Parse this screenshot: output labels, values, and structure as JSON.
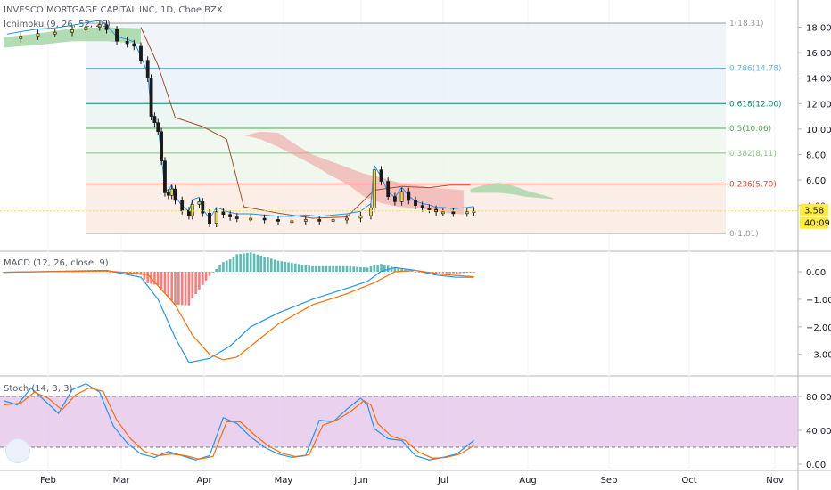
{
  "header": {
    "symbol_line": "INVESCO MORTGAGE CAPITAL INC, 1D, Cboe BZX",
    "ichimoku_label": "Ichimoku (9, 26, 52, 26)"
  },
  "price_scale": {
    "ticks": [
      "18.00",
      "16.00",
      "14.00",
      "12.00",
      "10.00",
      "8.00",
      "6.00",
      "4.00"
    ],
    "last_price_tag": "3.58",
    "countdown_tag": "40:09"
  },
  "macd_pane": {
    "title": "MACD (12, 26, close, 9)",
    "ticks": [
      "0.00",
      "−1.00",
      "−2.00",
      "−3.00"
    ]
  },
  "stoch_pane": {
    "title": "Stoch (14, 3, 3)",
    "ticks": [
      "80.00",
      "40.00",
      "0.00"
    ]
  },
  "time_axis": {
    "months": [
      "Feb",
      "Mar",
      "Apr",
      "May",
      "Jun",
      "Jul",
      "Aug",
      "Sep",
      "Oct",
      "Nov"
    ]
  },
  "colors": {
    "up_candle": "#e8d84a",
    "down_candle": "#1a1a1a",
    "cloud_bear": "#ef9a9a",
    "cloud_bull": "#a5d6a7",
    "macd_line": "#2196f3",
    "signal_line": "#ff6d00",
    "hist_pos": "#26a69a",
    "hist_neg": "#ef5350",
    "stoch_band": "#e1bee7"
  },
  "chart_data": [
    {
      "type": "candlestick",
      "title": "INVESCO MORTGAGE CAPITAL INC, 1D, Cboe BZX",
      "ylim": [
        1.0,
        19.0
      ],
      "x_months": [
        "Feb",
        "Mar",
        "Apr",
        "May",
        "Jun",
        "Jul",
        "Aug",
        "Sep",
        "Oct",
        "Nov"
      ],
      "fibonacci": [
        {
          "level": "1",
          "value": 18.31,
          "label": "1(18.31)"
        },
        {
          "level": "0.786",
          "value": 14.78,
          "label": "0.786(14.78)"
        },
        {
          "level": "0.618",
          "value": 12.0,
          "label": "0.618(12.00)"
        },
        {
          "level": "0.5",
          "value": 10.06,
          "label": "0.5(10.06)"
        },
        {
          "level": "0.382",
          "value": 8.11,
          "label": "0.382(8.11)"
        },
        {
          "level": "0.236",
          "value": 5.7,
          "label": "0.236(5.70)"
        },
        {
          "level": "0",
          "value": 1.81,
          "label": "0(1.81)"
        }
      ],
      "close_approx": [
        [
          1,
          17.1
        ],
        [
          5,
          17.3
        ],
        [
          10,
          17.5
        ],
        [
          15,
          17.6
        ],
        [
          20,
          17.8
        ],
        [
          24,
          18.0
        ],
        [
          28,
          18.2
        ],
        [
          30,
          17.8
        ],
        [
          33,
          16.9
        ],
        [
          36,
          16.7
        ],
        [
          38,
          16.5
        ],
        [
          40,
          15.4
        ],
        [
          42,
          14.0
        ],
        [
          43,
          11.0
        ],
        [
          44,
          10.5
        ],
        [
          45,
          9.8
        ],
        [
          46,
          7.5
        ],
        [
          47,
          5.0
        ],
        [
          48,
          4.8
        ],
        [
          49,
          5.3
        ],
        [
          50,
          4.4
        ],
        [
          52,
          3.6
        ],
        [
          54,
          3.2
        ],
        [
          55,
          4.1
        ],
        [
          57,
          4.3
        ],
        [
          58,
          3.4
        ],
        [
          60,
          2.6
        ],
        [
          62,
          3.5
        ],
        [
          64,
          3.3
        ],
        [
          66,
          3.1
        ],
        [
          68,
          3.0
        ],
        [
          72,
          3.0
        ],
        [
          76,
          2.9
        ],
        [
          80,
          2.8
        ],
        [
          84,
          2.8
        ],
        [
          88,
          2.9
        ],
        [
          92,
          2.8
        ],
        [
          96,
          2.9
        ],
        [
          100,
          3.0
        ],
        [
          104,
          3.2
        ],
        [
          107,
          3.8
        ],
        [
          108,
          6.8
        ],
        [
          110,
          5.9
        ],
        [
          112,
          4.7
        ],
        [
          114,
          4.3
        ],
        [
          116,
          5.1
        ],
        [
          118,
          4.4
        ],
        [
          120,
          4.0
        ],
        [
          122,
          3.8
        ],
        [
          124,
          3.7
        ],
        [
          126,
          3.5
        ],
        [
          128,
          3.5
        ],
        [
          131,
          3.4
        ],
        [
          135,
          3.5
        ],
        [
          137,
          3.58
        ]
      ],
      "ichimoku_tenkan_kijun_cloud_desc": "bearish red cloud from May to July, then thin green cloud projected into late July"
    },
    {
      "type": "macd",
      "title": "MACD (12, 26, close, 9)",
      "ylim": [
        -3.6,
        0.5
      ],
      "macd_approx": [
        [
          0,
          -0.02
        ],
        [
          30,
          0.05
        ],
        [
          40,
          -0.2
        ],
        [
          45,
          -1.0
        ],
        [
          50,
          -2.4
        ],
        [
          54,
          -3.3
        ],
        [
          60,
          -3.15
        ],
        [
          66,
          -2.7
        ],
        [
          72,
          -2.0
        ],
        [
          80,
          -1.5
        ],
        [
          90,
          -1.0
        ],
        [
          100,
          -0.6
        ],
        [
          106,
          -0.35
        ],
        [
          110,
          0.02
        ],
        [
          114,
          0.15
        ],
        [
          120,
          0.05
        ],
        [
          126,
          -0.12
        ],
        [
          132,
          -0.2
        ],
        [
          137,
          -0.2
        ]
      ],
      "signal_approx": [
        [
          0,
          -0.02
        ],
        [
          30,
          0.03
        ],
        [
          42,
          -0.1
        ],
        [
          50,
          -1.2
        ],
        [
          55,
          -2.3
        ],
        [
          60,
          -3.0
        ],
        [
          64,
          -3.2
        ],
        [
          68,
          -3.1
        ],
        [
          74,
          -2.5
        ],
        [
          80,
          -1.9
        ],
        [
          90,
          -1.2
        ],
        [
          100,
          -0.8
        ],
        [
          108,
          -0.4
        ],
        [
          114,
          0.0
        ],
        [
          120,
          0.05
        ],
        [
          128,
          -0.1
        ],
        [
          137,
          -0.18
        ]
      ]
    },
    {
      "type": "stochastic",
      "title": "Stoch (14, 3, 3)",
      "ylim": [
        0,
        100
      ],
      "band": [
        20,
        80
      ],
      "k_approx": [
        [
          0,
          75
        ],
        [
          4,
          70
        ],
        [
          8,
          90
        ],
        [
          12,
          75
        ],
        [
          16,
          60
        ],
        [
          20,
          88
        ],
        [
          24,
          95
        ],
        [
          28,
          85
        ],
        [
          32,
          45
        ],
        [
          36,
          25
        ],
        [
          40,
          12
        ],
        [
          44,
          8
        ],
        [
          48,
          15
        ],
        [
          52,
          10
        ],
        [
          56,
          5
        ],
        [
          60,
          10
        ],
        [
          64,
          55
        ],
        [
          68,
          48
        ],
        [
          72,
          32
        ],
        [
          76,
          20
        ],
        [
          80,
          12
        ],
        [
          84,
          8
        ],
        [
          88,
          10
        ],
        [
          92,
          52
        ],
        [
          96,
          50
        ],
        [
          100,
          65
        ],
        [
          104,
          78
        ],
        [
          106,
          70
        ],
        [
          108,
          42
        ],
        [
          112,
          30
        ],
        [
          116,
          28
        ],
        [
          120,
          10
        ],
        [
          124,
          5
        ],
        [
          128,
          8
        ],
        [
          132,
          12
        ],
        [
          137,
          28
        ]
      ],
      "d_approx": [
        [
          0,
          70
        ],
        [
          5,
          72
        ],
        [
          9,
          85
        ],
        [
          13,
          78
        ],
        [
          17,
          64
        ],
        [
          21,
          82
        ],
        [
          25,
          90
        ],
        [
          29,
          86
        ],
        [
          33,
          52
        ],
        [
          37,
          30
        ],
        [
          41,
          15
        ],
        [
          45,
          10
        ],
        [
          49,
          12
        ],
        [
          53,
          10
        ],
        [
          57,
          6
        ],
        [
          61,
          9
        ],
        [
          65,
          50
        ],
        [
          69,
          50
        ],
        [
          73,
          35
        ],
        [
          77,
          22
        ],
        [
          81,
          13
        ],
        [
          85,
          9
        ],
        [
          89,
          11
        ],
        [
          93,
          46
        ],
        [
          97,
          52
        ],
        [
          101,
          62
        ],
        [
          105,
          75
        ],
        [
          107,
          70
        ],
        [
          109,
          48
        ],
        [
          113,
          33
        ],
        [
          117,
          28
        ],
        [
          121,
          14
        ],
        [
          125,
          7
        ],
        [
          129,
          8
        ],
        [
          133,
          12
        ],
        [
          137,
          22
        ]
      ]
    }
  ]
}
